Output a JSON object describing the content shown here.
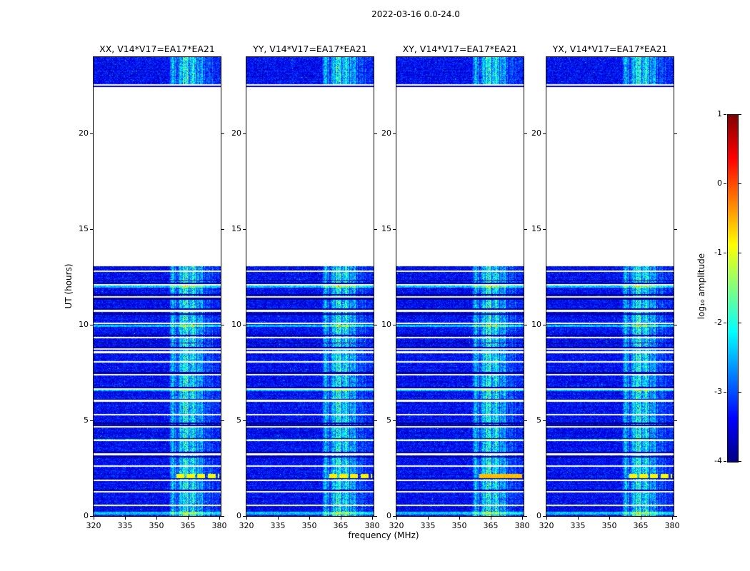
{
  "chart_data": {
    "type": "heatmap",
    "title": "2022-03-16 0.0-24.0",
    "xlabel": "frequency (MHz)",
    "ylabel": "UT (hours)",
    "x_range": [
      320,
      380.7
    ],
    "x_ticks": [
      320,
      335,
      350,
      365,
      380
    ],
    "y_range": [
      0,
      24
    ],
    "y_ticks": [
      0,
      5,
      10,
      15,
      20
    ],
    "colorbar": {
      "label": "log₁₀ amplitude",
      "ticks": [
        1,
        0,
        -1,
        -2,
        -3,
        -4
      ],
      "range": [
        -4,
        1
      ],
      "colormap": "jet"
    },
    "panels": [
      {
        "label": "XX, V14*V17=EA17*EA21",
        "seed": 11,
        "feature_boost": 0,
        "feature_solid": false
      },
      {
        "label": "YY, V14*V17=EA17*EA21",
        "seed": 22,
        "feature_boost": 0.1,
        "feature_solid": false
      },
      {
        "label": "XY, V14*V17=EA17*EA21",
        "seed": 33,
        "feature_boost": 0.35,
        "feature_solid": true
      },
      {
        "label": "YX, V14*V17=EA17*EA21",
        "seed": 44,
        "feature_boost": 0.05,
        "feature_solid": false
      }
    ],
    "data_segments_hours": [
      [
        0,
        13.05
      ],
      [
        22.42,
        24
      ]
    ],
    "background_value": -3.4,
    "noise_amplitude": 0.45,
    "rfi_band_mhz": [
      356,
      380.7
    ],
    "band_center_mhz": 365,
    "band_seed": 7,
    "stripe_seed": 5,
    "gap_period_hours": 0.68,
    "gap_start_hours": 0.55,
    "white_bands_hours": [
      [
        8.5,
        8.64
      ],
      [
        22.52,
        22.58
      ]
    ],
    "black_bands_hours": [
      3.1,
      4.85,
      6.1,
      7.5,
      9.05,
      10.55,
      11.35,
      11.42,
      12.3,
      22.44,
      22.5
    ],
    "bright_rows_hours": [
      0.15,
      4.0,
      6.6,
      9.95,
      12.0
    ],
    "bright_feature": {
      "time_hours": [
        1.98,
        2.22
      ],
      "freq_mhz": [
        359.5,
        380
      ],
      "value": -0.9,
      "dash_mhz": 5,
      "dash_on_mhz": 3.8
    }
  }
}
